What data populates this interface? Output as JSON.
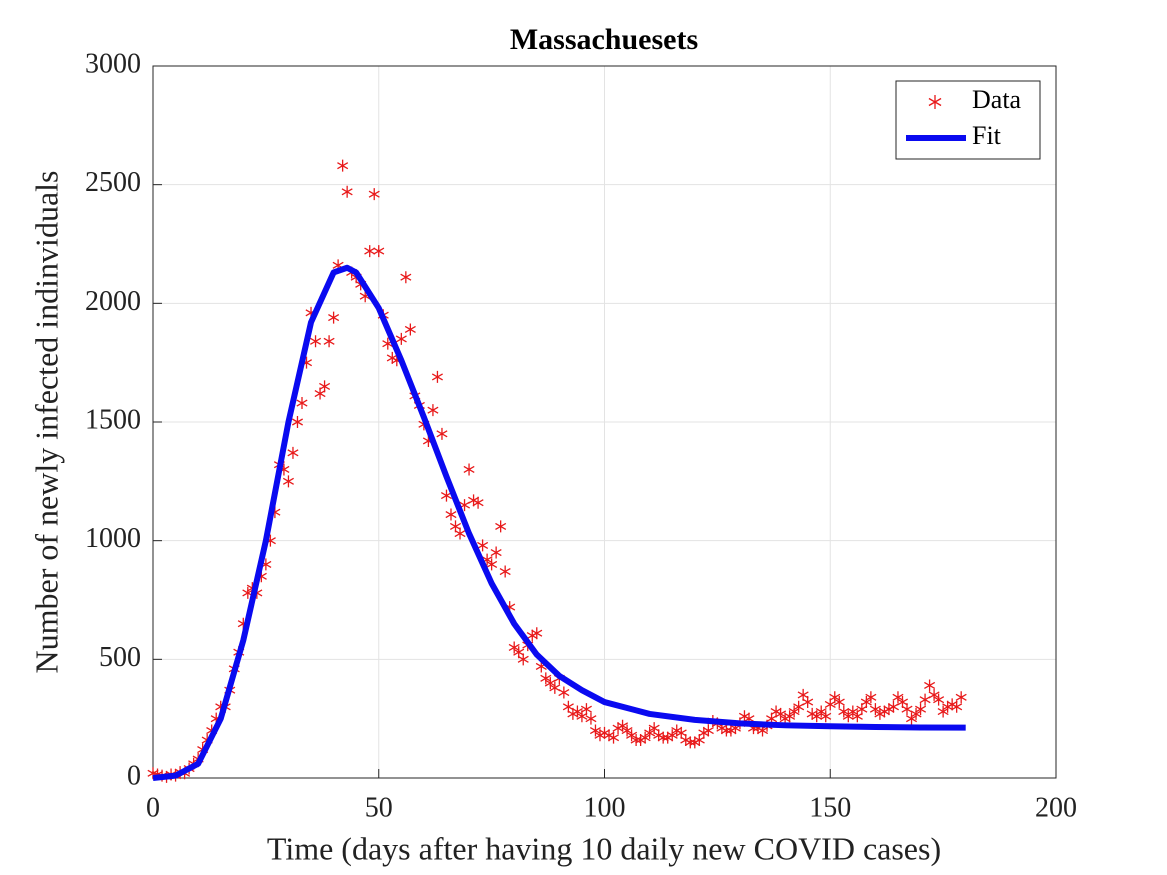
{
  "chart_data": {
    "type": "line",
    "title": "Massachuesets",
    "x_label": "Time (days after having 10 daily new COVID cases)",
    "y_label": "Number of newly infected indinviduals",
    "xlim": [
      0,
      200
    ],
    "xticks": [
      0,
      50,
      100,
      150,
      200
    ],
    "ylim": [
      0,
      3000
    ],
    "yticks": [
      0,
      500,
      1000,
      1500,
      2000,
      2500,
      3000
    ],
    "grid": true,
    "legend": "upper right",
    "series": [
      {
        "name": "Data",
        "color": "#e8191a",
        "style": "marker",
        "x": [
          0,
          1,
          2,
          3,
          4,
          5,
          6,
          7,
          8,
          9,
          10,
          11,
          12,
          13,
          14,
          15,
          16,
          17,
          18,
          19,
          20,
          21,
          22,
          23,
          24,
          25,
          26,
          27,
          28,
          29,
          30,
          31,
          32,
          33,
          34,
          35,
          36,
          37,
          38,
          39,
          40,
          41,
          42,
          43,
          44,
          45,
          46,
          47,
          48,
          49,
          50,
          51,
          52,
          53,
          54,
          55,
          56,
          57,
          58,
          59,
          60,
          61,
          62,
          63,
          64,
          65,
          66,
          67,
          68,
          69,
          70,
          71,
          72,
          73,
          74,
          75,
          76,
          77,
          78,
          79,
          80,
          81,
          82,
          83,
          84,
          85,
          86,
          87,
          88,
          89,
          90,
          91,
          92,
          93,
          94,
          95,
          96,
          97,
          98,
          99,
          100,
          101,
          102,
          103,
          104,
          105,
          106,
          107,
          108,
          109,
          110,
          111,
          112,
          113,
          114,
          115,
          116,
          117,
          118,
          119,
          120,
          121,
          122,
          123,
          124,
          125,
          126,
          127,
          128,
          129,
          130,
          131,
          132,
          133,
          134,
          135,
          136,
          137,
          138,
          139,
          140,
          141,
          142,
          143,
          144,
          145,
          146,
          147,
          148,
          149,
          150,
          151,
          152,
          153,
          154,
          155,
          156,
          157,
          158,
          159,
          160,
          161,
          162,
          163,
          164,
          165,
          166,
          167,
          168,
          169,
          170,
          171,
          172,
          173,
          174,
          175,
          176,
          177,
          178,
          179
        ],
        "values": [
          20,
          15,
          10,
          5,
          15,
          10,
          25,
          20,
          40,
          60,
          80,
          120,
          160,
          200,
          250,
          300,
          300,
          370,
          460,
          530,
          650,
          780,
          800,
          780,
          850,
          900,
          1000,
          1120,
          1320,
          1300,
          1250,
          1370,
          1500,
          1580,
          1750,
          1960,
          1840,
          1620,
          1650,
          1840,
          1940,
          2160,
          2580,
          2470,
          2130,
          2110,
          2080,
          2030,
          2220,
          2460,
          2220,
          1950,
          1830,
          1770,
          1760,
          1850,
          2110,
          1890,
          1610,
          1570,
          1490,
          1420,
          1550,
          1690,
          1450,
          1190,
          1110,
          1060,
          1030,
          1150,
          1300,
          1170,
          1160,
          980,
          920,
          900,
          950,
          1060,
          870,
          720,
          550,
          530,
          500,
          560,
          600,
          610,
          470,
          420,
          400,
          380,
          420,
          360,
          300,
          270,
          280,
          260,
          290,
          250,
          200,
          180,
          190,
          180,
          170,
          210,
          220,
          200,
          180,
          160,
          160,
          170,
          190,
          210,
          180,
          170,
          170,
          180,
          200,
          190,
          160,
          150,
          150,
          160,
          190,
          200,
          240,
          230,
          210,
          200,
          200,
          210,
          230,
          260,
          250,
          210,
          210,
          200,
          220,
          250,
          280,
          270,
          250,
          260,
          280,
          300,
          350,
          320,
          270,
          260,
          280,
          260,
          310,
          340,
          320,
          280,
          260,
          280,
          260,
          290,
          320,
          340,
          290,
          270,
          280,
          290,
          300,
          340,
          320,
          290,
          250,
          270,
          290,
          330,
          390,
          350,
          330,
          280,
          300,
          310,
          300,
          340
        ]
      },
      {
        "name": "Fit",
        "color": "#0a0af0",
        "style": "line",
        "x": [
          0,
          5,
          10,
          15,
          20,
          25,
          30,
          35,
          40,
          43,
          45,
          50,
          55,
          60,
          65,
          70,
          75,
          80,
          85,
          90,
          95,
          100,
          110,
          120,
          130,
          140,
          150,
          160,
          170,
          180
        ],
        "values": [
          0,
          10,
          60,
          250,
          580,
          1000,
          1500,
          1920,
          2130,
          2150,
          2130,
          1980,
          1760,
          1520,
          1270,
          1030,
          820,
          650,
          520,
          430,
          370,
          320,
          270,
          245,
          230,
          222,
          218,
          215,
          213,
          212
        ]
      }
    ]
  }
}
